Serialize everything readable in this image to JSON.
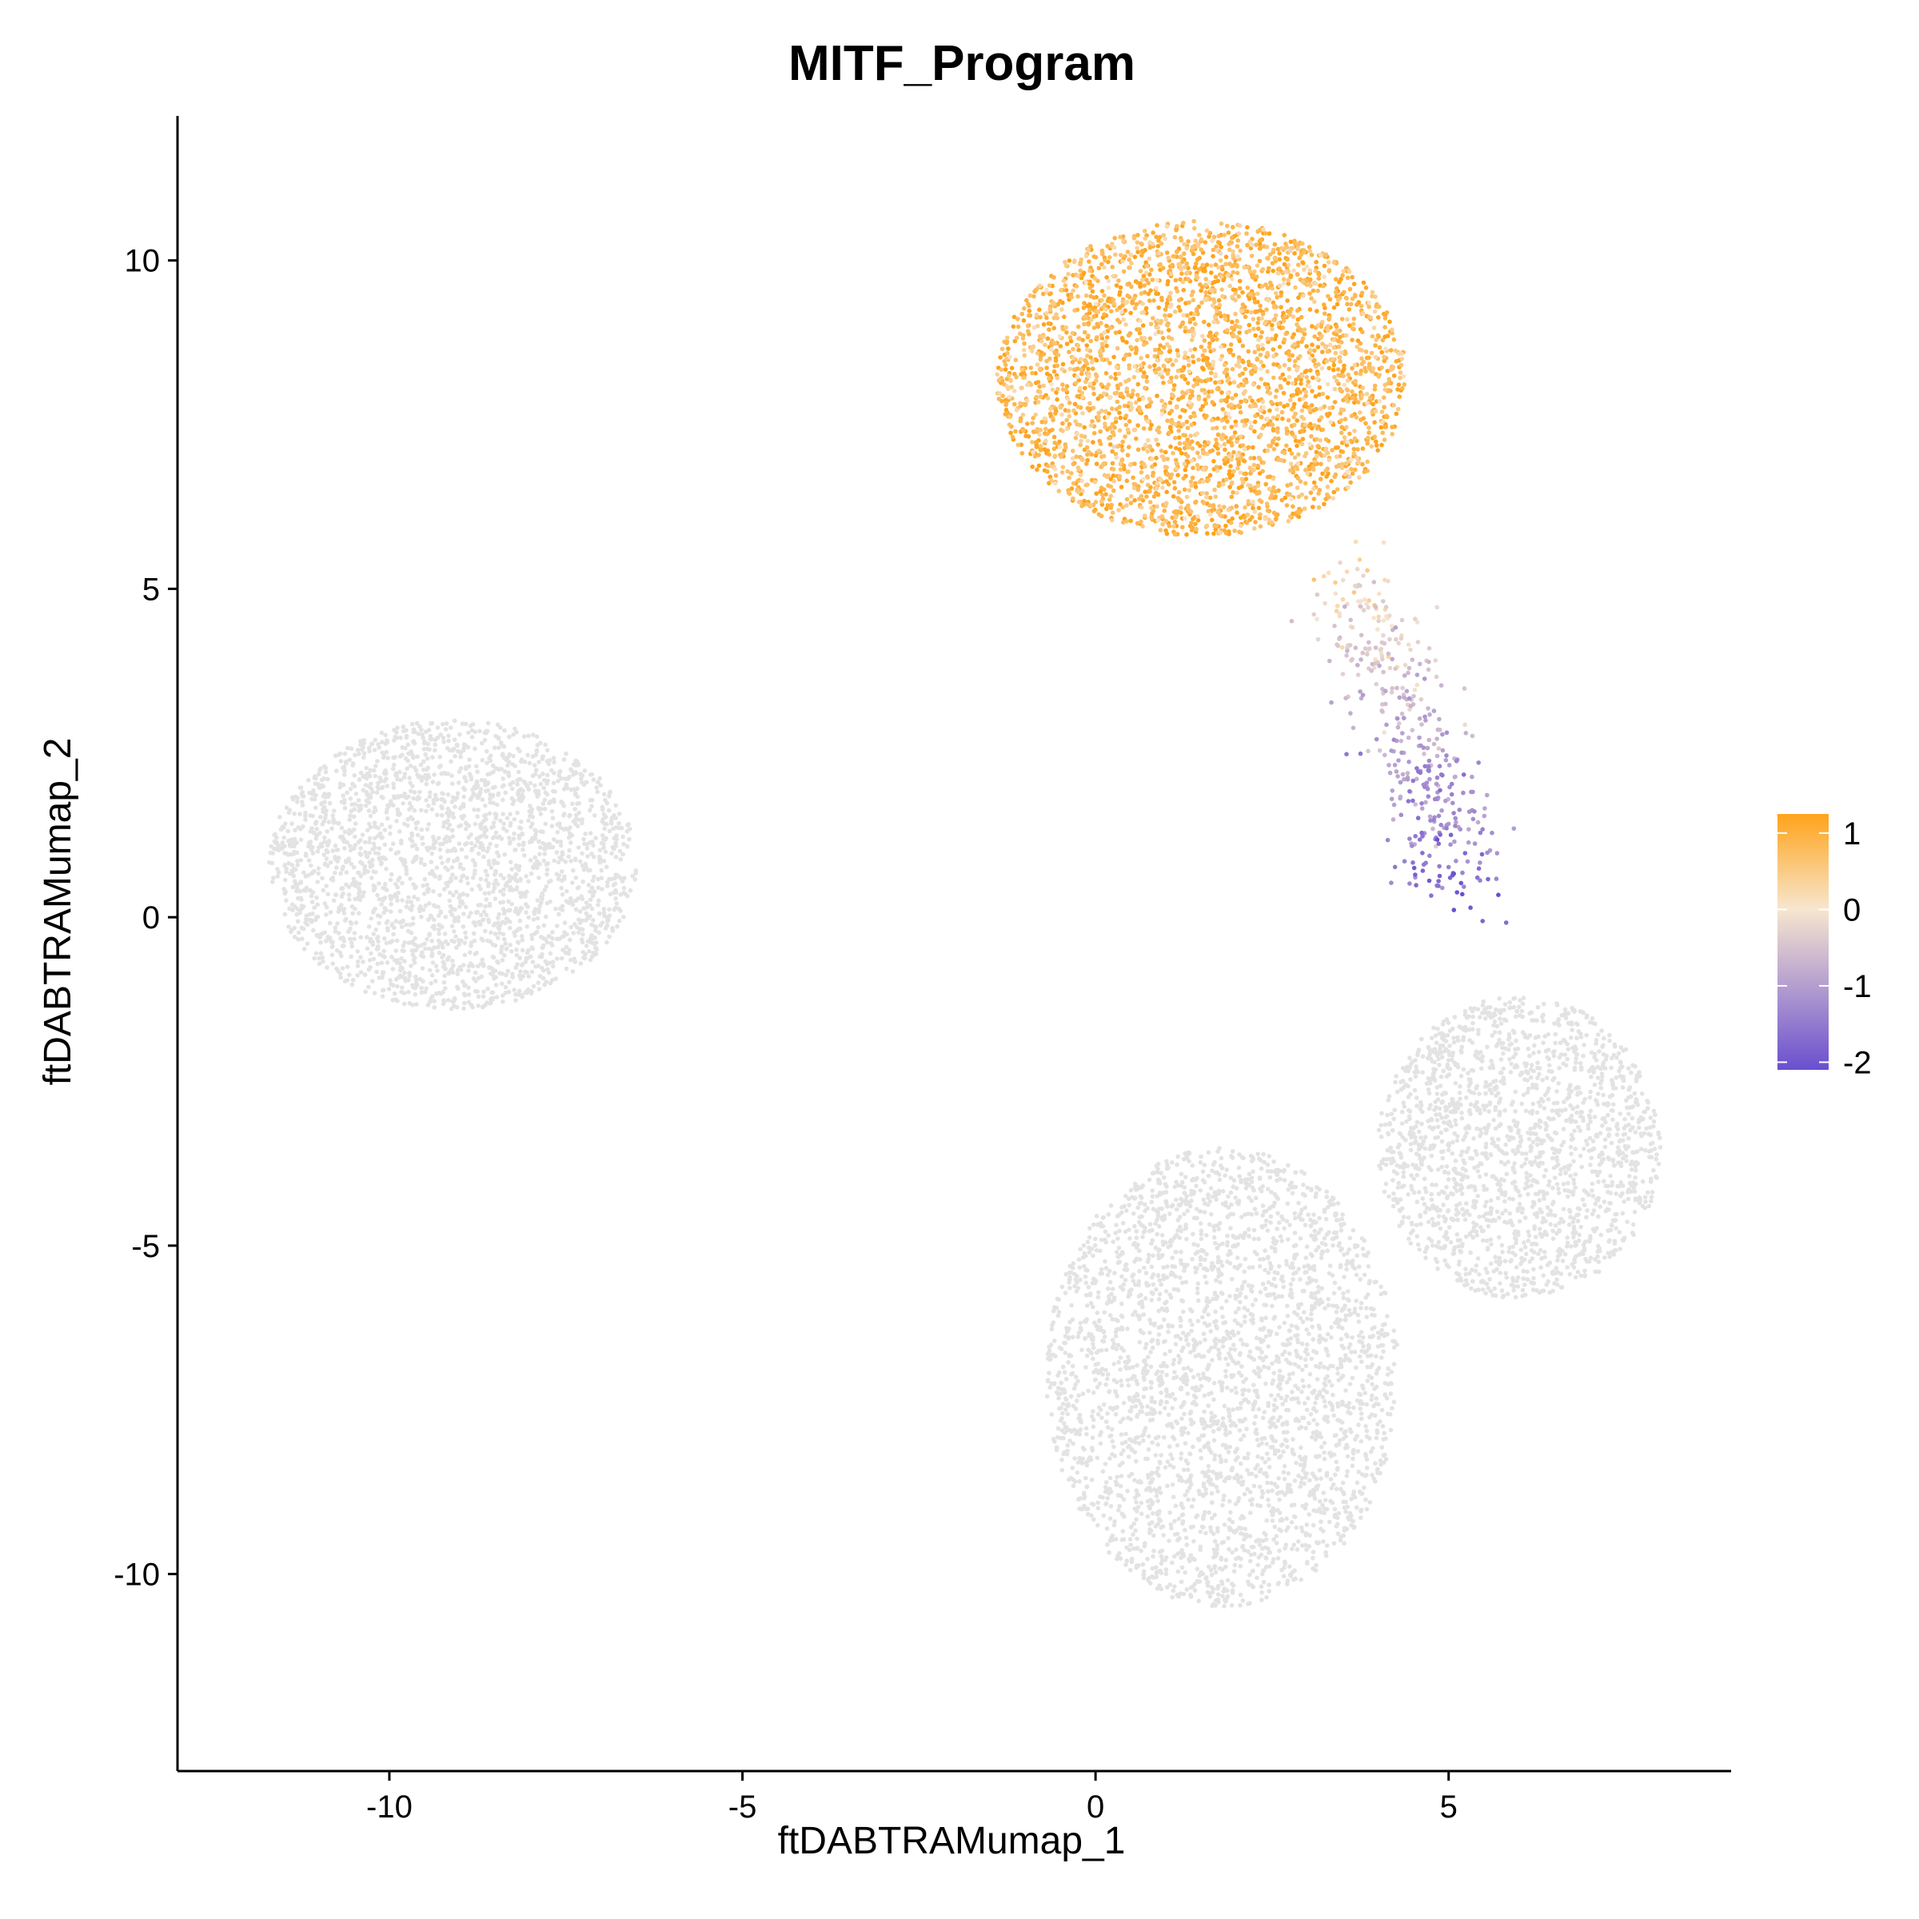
{
  "chart_data": {
    "type": "scatter",
    "title": "MITF_Program",
    "xlabel": "ftDABTRAMumap_1",
    "ylabel": "ftDABTRAMumap_2",
    "xlim": [
      -13,
      9
    ],
    "ylim": [
      -13,
      12.2
    ],
    "xticks": [
      -10,
      -5,
      0,
      5
    ],
    "yticks": [
      -10,
      -5,
      0,
      5,
      10
    ],
    "xtick_labels": [
      "-10",
      "-5",
      "0",
      "5"
    ],
    "ytick_labels": [
      "-10",
      "-5",
      "0",
      "5",
      "10"
    ],
    "grid": false,
    "na_color": "#e3e3e3",
    "color_scale": {
      "title": "",
      "min": -2.1,
      "max": 1.25,
      "ticks": [
        1,
        0,
        -1,
        -2
      ],
      "tick_labels": [
        "1",
        "0",
        "-1",
        "-2"
      ],
      "colors": [
        "#6a4fcf",
        "#f7e6cf",
        "#ffa31a"
      ]
    },
    "clusters": [
      {
        "name": "left cluster",
        "center": [
          -9.1,
          0.8
        ],
        "radius": [
          2.6,
          2.2
        ],
        "points": 2400,
        "score": null
      },
      {
        "name": "top cluster",
        "center": [
          1.5,
          8.2
        ],
        "radius": [
          2.9,
          2.4
        ],
        "points": 3200,
        "score": 0.9
      },
      {
        "name": "bridge",
        "path": [
          [
            3.5,
            5.2
          ],
          [
            4.3,
            3.5
          ],
          [
            4.7,
            2.0
          ],
          [
            5.1,
            0.5
          ]
        ],
        "points": 420,
        "score": -1.6
      },
      {
        "name": "lower-left cluster",
        "center": [
          1.8,
          -7.0
        ],
        "radius": [
          2.5,
          3.5
        ],
        "points": 3000,
        "score": null
      },
      {
        "name": "lower-right cluster",
        "center": [
          6.0,
          -3.5
        ],
        "radius": [
          2.0,
          2.3
        ],
        "points": 1800,
        "score": null
      }
    ]
  }
}
